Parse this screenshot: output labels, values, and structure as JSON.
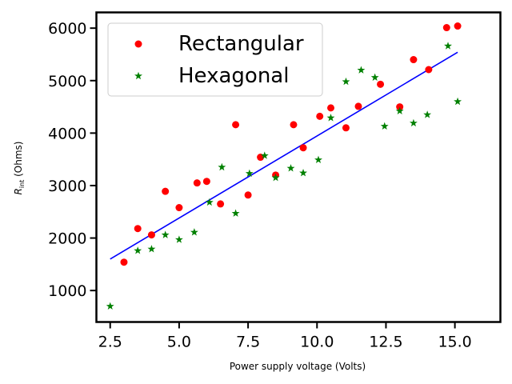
{
  "chart_data": {
    "type": "scatter",
    "xlabel": "Power supply voltage (Volts)",
    "ylabel": {
      "prefix": "R",
      "subscript": "int",
      "suffix": " (Ohms)"
    },
    "xlim": [
      2.0,
      16.65
    ],
    "ylim": [
      400,
      6300
    ],
    "xticks": [
      2.5,
      5.0,
      7.5,
      10.0,
      12.5,
      15.0
    ],
    "xtick_labels": [
      "2.5",
      "5.0",
      "7.5",
      "10.0",
      "12.5",
      "15.0"
    ],
    "yticks": [
      1000,
      2000,
      3000,
      4000,
      5000,
      6000
    ],
    "ytick_labels": [
      "1000",
      "2000",
      "3000",
      "4000",
      "5000",
      "6000"
    ],
    "legend_position": "top-left",
    "series": [
      {
        "name": "Rectangular",
        "marker": "circle",
        "color": "#ff0000",
        "points": [
          [
            3.0,
            1540
          ],
          [
            3.5,
            2180
          ],
          [
            4.0,
            2060
          ],
          [
            4.5,
            2890
          ],
          [
            5.0,
            2580
          ],
          [
            5.65,
            3050
          ],
          [
            6.0,
            3080
          ],
          [
            6.5,
            2650
          ],
          [
            7.05,
            4160
          ],
          [
            7.5,
            2820
          ],
          [
            7.95,
            3540
          ],
          [
            8.5,
            3200
          ],
          [
            9.15,
            4160
          ],
          [
            9.5,
            3720
          ],
          [
            10.1,
            4320
          ],
          [
            10.5,
            4480
          ],
          [
            11.05,
            4100
          ],
          [
            11.5,
            4510
          ],
          [
            12.3,
            4930
          ],
          [
            13.0,
            4500
          ],
          [
            13.5,
            5400
          ],
          [
            14.05,
            5210
          ],
          [
            14.7,
            6010
          ],
          [
            15.1,
            6040
          ]
        ]
      },
      {
        "name": "Hexagonal",
        "marker": "star",
        "color": "#008000",
        "points": [
          [
            2.5,
            700
          ],
          [
            3.5,
            1760
          ],
          [
            4.0,
            1790
          ],
          [
            4.5,
            2060
          ],
          [
            5.0,
            1970
          ],
          [
            5.55,
            2110
          ],
          [
            6.1,
            2680
          ],
          [
            6.55,
            3350
          ],
          [
            7.05,
            2470
          ],
          [
            7.55,
            3230
          ],
          [
            8.1,
            3570
          ],
          [
            8.5,
            3150
          ],
          [
            9.05,
            3330
          ],
          [
            9.5,
            3240
          ],
          [
            10.05,
            3490
          ],
          [
            10.5,
            4290
          ],
          [
            11.05,
            4980
          ],
          [
            11.6,
            5200
          ],
          [
            12.1,
            5060
          ],
          [
            12.45,
            4130
          ],
          [
            13.0,
            4420
          ],
          [
            13.5,
            4190
          ],
          [
            14.0,
            4350
          ],
          [
            14.75,
            5660
          ],
          [
            15.1,
            4600
          ]
        ]
      }
    ],
    "fit_line": {
      "color": "#0000ff",
      "x": [
        2.5,
        15.1
      ],
      "y": [
        1600,
        5540
      ]
    }
  }
}
